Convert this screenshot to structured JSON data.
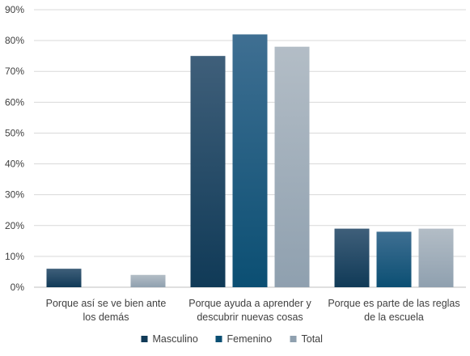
{
  "chart_data": {
    "type": "bar",
    "categories": [
      [
        "Porque así se ve bien ante",
        "los demás"
      ],
      [
        "Porque ayuda a aprender y",
        "descubrir nuevas cosas"
      ],
      [
        "Porque es parte de las reglas",
        "de la escuela"
      ]
    ],
    "series": [
      {
        "name": "Masculino",
        "values": [
          6,
          75,
          19
        ],
        "color_top": "#3f5f7a",
        "color_bottom": "#103a57"
      },
      {
        "name": "Femenino",
        "values": [
          0,
          82,
          18
        ],
        "color_top": "#3f6f92",
        "color_bottom": "#0b4f73"
      },
      {
        "name": "Total",
        "values": [
          4,
          78,
          19
        ],
        "color_top": "#b3bdc6",
        "color_bottom": "#8fa0af"
      }
    ],
    "ylim": [
      0,
      90
    ],
    "yticks": [
      "0%",
      "10%",
      "20%",
      "30%",
      "40%",
      "50%",
      "60%",
      "70%",
      "80%",
      "90%"
    ],
    "ytick_values": [
      0,
      10,
      20,
      30,
      40,
      50,
      60,
      70,
      80,
      90
    ],
    "grid": true,
    "legend_position": "bottom"
  }
}
